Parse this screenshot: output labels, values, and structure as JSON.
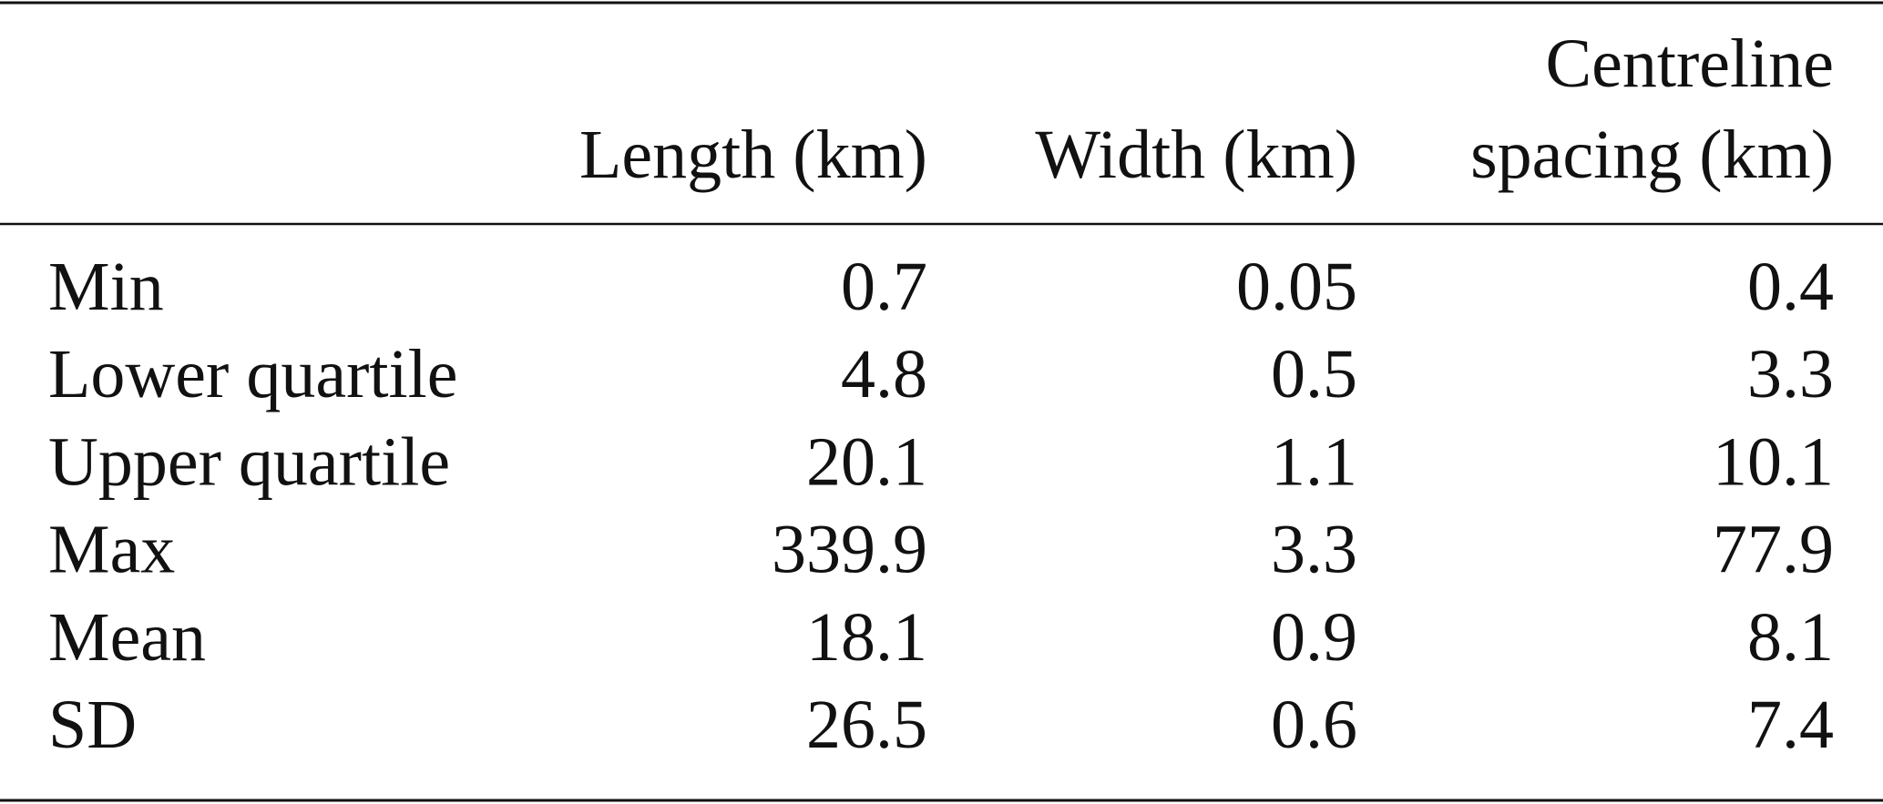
{
  "table": {
    "columns": [
      [
        "Length (km)"
      ],
      [
        "Width (km)"
      ],
      [
        "Centreline",
        "spacing (km)"
      ]
    ],
    "rows": [
      {
        "label": "Min",
        "values": [
          0.7,
          0.05,
          0.4
        ]
      },
      {
        "label": "Lower quartile",
        "values": [
          4.8,
          0.5,
          3.3
        ]
      },
      {
        "label": "Upper quartile",
        "values": [
          20.1,
          1.1,
          10.1
        ]
      },
      {
        "label": "Max",
        "values": [
          339.9,
          3.3,
          77.9
        ]
      },
      {
        "label": "Mean",
        "values": [
          18.1,
          0.9,
          8.1
        ]
      },
      {
        "label": "SD",
        "values": [
          26.5,
          0.6,
          7.4
        ]
      }
    ]
  }
}
